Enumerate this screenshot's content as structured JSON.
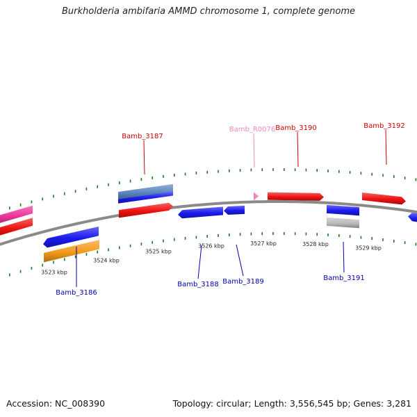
{
  "title": "Burkholderia ambifaria AMMD chromosome 1, complete genome",
  "footer": {
    "accession": "Accession: NC_008390",
    "summary": "Topology: circular; Length: 3,556,545 bp; Genes: 3,281"
  },
  "colors": {
    "backbone": "#8a8a8a",
    "tick": "#1a7a1a",
    "label_red": "#cc0000",
    "label_blue": "#0000aa",
    "label_pink": "#ee88bb",
    "red": "#ee1111",
    "blue": "#1a1aee",
    "pink": "#ee3399",
    "steel": "#5a86c0",
    "orange": "#f59a1a",
    "gray": "#bbbbbb"
  },
  "scale": {
    "unit": "kbp",
    "labels": [
      "3523 kbp",
      "3524 kbp",
      "3525 kbp",
      "3526 kbp",
      "3527 kbp",
      "3528 kbp",
      "3529 kbp"
    ]
  },
  "genes_above": [
    {
      "name": "Bamb_3187",
      "color": "label_red"
    },
    {
      "name": "Bamb_R0076",
      "color": "label_pink"
    },
    {
      "name": "Bamb_3190",
      "color": "label_red"
    },
    {
      "name": "Bamb_3192",
      "color": "label_red"
    }
  ],
  "genes_below": [
    {
      "name": "Bamb_3186",
      "color": "label_blue"
    },
    {
      "name": "Bamb_3188",
      "color": "label_blue"
    },
    {
      "name": "Bamb_3189",
      "color": "label_blue"
    },
    {
      "name": "Bamb_3191",
      "color": "label_blue"
    }
  ]
}
